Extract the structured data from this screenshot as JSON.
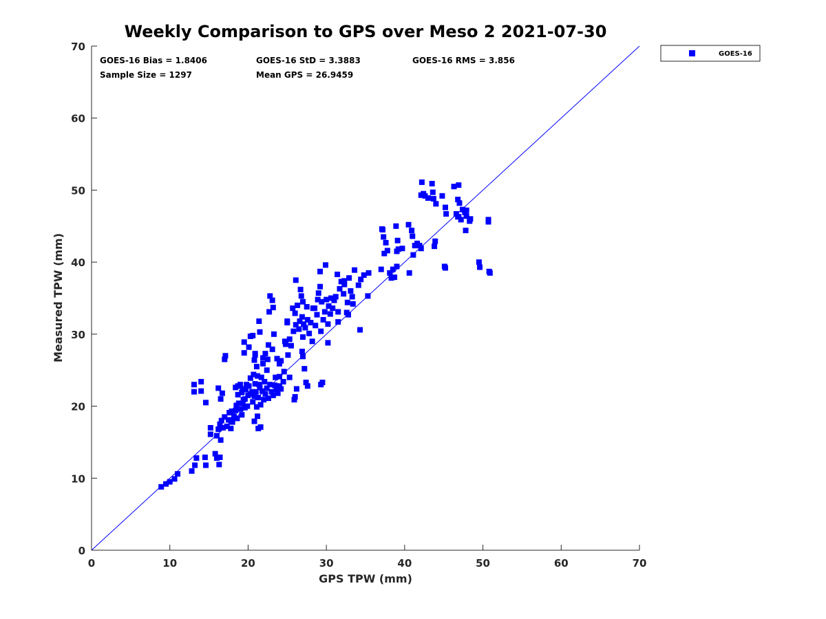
{
  "chart_data": {
    "type": "scatter",
    "title": "Weekly Comparison to GPS over Meso 2 2021-07-30",
    "xlabel": "GPS TPW (mm)",
    "ylabel": "Measured TPW (mm)",
    "xlim": [
      0,
      70
    ],
    "ylim": [
      0,
      70
    ],
    "xticks": [
      "0",
      "10",
      "20",
      "30",
      "40",
      "50",
      "60",
      "70"
    ],
    "yticks": [
      "0",
      "10",
      "20",
      "30",
      "40",
      "50",
      "60",
      "70"
    ],
    "grid": false,
    "legend_position": "outside-top-right",
    "reference_line": {
      "x": [
        0,
        70
      ],
      "y": [
        0,
        70
      ],
      "color": "#0000ff"
    },
    "stats": {
      "bias": "GOES-16 Bias = 1.8406",
      "std": "GOES-16 StD = 3.3883",
      "rms": "GOES-16 RMS = 3.856",
      "sample_size": "Sample Size = 1297",
      "mean_gps": "Mean GPS = 26.9459"
    },
    "series": [
      {
        "name": "GOES-16",
        "color": "#0000ff",
        "marker": "square",
        "points": [
          [
            8.9,
            8.8
          ],
          [
            9.5,
            9.2
          ],
          [
            10.0,
            9.5
          ],
          [
            10.6,
            9.9
          ],
          [
            11.0,
            10.6
          ],
          [
            12.8,
            11.0
          ],
          [
            13.2,
            11.8
          ],
          [
            13.4,
            12.8
          ],
          [
            14.5,
            12.9
          ],
          [
            14.6,
            11.8
          ],
          [
            13.1,
            22.0
          ],
          [
            13.1,
            23.0
          ],
          [
            14.0,
            22.1
          ],
          [
            14.0,
            23.4
          ],
          [
            14.6,
            20.5
          ],
          [
            15.2,
            16.1
          ],
          [
            15.2,
            17.0
          ],
          [
            15.8,
            13.4
          ],
          [
            16.0,
            12.8
          ],
          [
            16.3,
            11.9
          ],
          [
            16.4,
            12.9
          ],
          [
            16.0,
            15.9
          ],
          [
            16.2,
            16.8
          ],
          [
            16.4,
            17.5
          ],
          [
            16.5,
            15.3
          ],
          [
            16.6,
            18.0
          ],
          [
            16.8,
            17.0
          ],
          [
            17.0,
            18.5
          ],
          [
            17.3,
            17.2
          ],
          [
            17.5,
            18.1
          ],
          [
            17.6,
            19.1
          ],
          [
            17.8,
            16.9
          ],
          [
            17.8,
            18.0
          ],
          [
            17.9,
            19.3
          ],
          [
            18.0,
            17.8
          ],
          [
            18.2,
            18.6
          ],
          [
            18.4,
            19.4
          ],
          [
            18.5,
            20.1
          ],
          [
            18.6,
            18.3
          ],
          [
            18.7,
            21.6
          ],
          [
            18.8,
            20.4
          ],
          [
            19.0,
            19.6
          ],
          [
            19.2,
            18.8
          ],
          [
            19.2,
            21.9
          ],
          [
            19.3,
            22.4
          ],
          [
            19.4,
            20.9
          ],
          [
            19.6,
            19.8
          ],
          [
            19.7,
            22.3
          ],
          [
            19.8,
            23.0
          ],
          [
            20.0,
            21.5
          ],
          [
            20.1,
            22.8
          ],
          [
            20.3,
            21.7
          ],
          [
            20.3,
            23.9
          ],
          [
            20.5,
            22.0
          ],
          [
            20.6,
            20.6
          ],
          [
            20.7,
            24.4
          ],
          [
            20.8,
            21.4
          ],
          [
            20.9,
            23.1
          ],
          [
            21.0,
            22.0
          ],
          [
            21.1,
            19.9
          ],
          [
            21.2,
            24.2
          ],
          [
            21.3,
            21.2
          ],
          [
            21.4,
            23.0
          ],
          [
            21.5,
            22.6
          ],
          [
            21.6,
            20.2
          ],
          [
            21.7,
            24.0
          ],
          [
            21.8,
            22.1
          ],
          [
            22.0,
            20.9
          ],
          [
            22.1,
            23.4
          ],
          [
            22.2,
            21.7
          ],
          [
            22.4,
            22.5
          ],
          [
            22.6,
            21.1
          ],
          [
            22.8,
            23.0
          ],
          [
            23.0,
            22.0
          ],
          [
            23.2,
            21.5
          ],
          [
            23.4,
            22.9
          ],
          [
            23.6,
            22.3
          ],
          [
            23.8,
            21.8
          ],
          [
            24.0,
            24.1
          ],
          [
            24.2,
            22.4
          ],
          [
            18.4,
            22.6
          ],
          [
            18.7,
            22.8
          ],
          [
            19.0,
            23.0
          ],
          [
            19.3,
            20.4
          ],
          [
            19.6,
            21.0
          ],
          [
            19.9,
            20.0
          ],
          [
            19.5,
            27.4
          ],
          [
            19.5,
            28.9
          ],
          [
            20.1,
            28.2
          ],
          [
            20.3,
            29.7
          ],
          [
            20.6,
            29.8
          ],
          [
            20.8,
            26.4
          ],
          [
            20.9,
            27.1
          ],
          [
            21.1,
            25.5
          ],
          [
            21.4,
            31.8
          ],
          [
            21.5,
            30.3
          ],
          [
            21.9,
            26.7
          ],
          [
            22.4,
            25.0
          ],
          [
            22.5,
            26.5
          ],
          [
            22.6,
            28.5
          ],
          [
            22.7,
            33.1
          ],
          [
            22.8,
            35.3
          ],
          [
            23.1,
            34.7
          ],
          [
            23.2,
            33.7
          ],
          [
            23.1,
            27.9
          ],
          [
            23.5,
            24.0
          ],
          [
            23.7,
            26.6
          ],
          [
            24.0,
            25.9
          ],
          [
            24.2,
            26.3
          ],
          [
            24.6,
            24.8
          ],
          [
            24.8,
            28.6
          ],
          [
            25.0,
            31.6
          ],
          [
            25.0,
            31.8
          ],
          [
            25.3,
            29.3
          ],
          [
            25.5,
            28.4
          ],
          [
            25.7,
            33.6
          ],
          [
            25.8,
            30.4
          ],
          [
            26.0,
            32.9
          ],
          [
            26.1,
            31.3
          ],
          [
            26.1,
            37.5
          ],
          [
            26.3,
            34.0
          ],
          [
            26.5,
            30.7
          ],
          [
            26.6,
            31.8
          ],
          [
            26.7,
            36.2
          ],
          [
            26.9,
            32.4
          ],
          [
            27.0,
            29.6
          ],
          [
            27.1,
            31.4
          ],
          [
            27.3,
            30.9
          ],
          [
            27.5,
            33.8
          ],
          [
            27.6,
            32.0
          ],
          [
            27.8,
            30.1
          ],
          [
            28.0,
            31.6
          ],
          [
            28.2,
            29.0
          ],
          [
            28.3,
            33.6
          ],
          [
            28.6,
            31.2
          ],
          [
            28.8,
            32.7
          ],
          [
            29.0,
            35.7
          ],
          [
            29.2,
            36.6
          ],
          [
            29.4,
            34.5
          ],
          [
            29.6,
            32.0
          ],
          [
            29.8,
            33.1
          ],
          [
            30.0,
            34.8
          ],
          [
            30.2,
            31.4
          ],
          [
            30.3,
            33.9
          ],
          [
            30.5,
            32.8
          ],
          [
            30.6,
            35.0
          ],
          [
            30.8,
            33.6
          ],
          [
            31.0,
            34.7
          ],
          [
            31.2,
            35.2
          ],
          [
            31.5,
            33.1
          ],
          [
            31.5,
            31.7
          ],
          [
            31.7,
            36.3
          ],
          [
            31.9,
            37.3
          ],
          [
            32.2,
            35.6
          ],
          [
            32.3,
            36.9
          ],
          [
            32.6,
            33.0
          ],
          [
            32.7,
            34.4
          ],
          [
            32.9,
            37.8
          ],
          [
            33.1,
            36.0
          ],
          [
            33.3,
            35.2
          ],
          [
            29.2,
            38.7
          ],
          [
            29.9,
            39.6
          ],
          [
            31.4,
            38.3
          ],
          [
            32.3,
            37.4
          ],
          [
            33.6,
            38.9
          ],
          [
            34.1,
            36.8
          ],
          [
            34.4,
            37.6
          ],
          [
            34.8,
            38.2
          ],
          [
            35.3,
            35.3
          ],
          [
            35.4,
            38.5
          ],
          [
            34.3,
            30.6
          ],
          [
            30.2,
            28.8
          ],
          [
            29.3,
            30.4
          ],
          [
            27.0,
            26.9
          ],
          [
            26.9,
            27.6
          ],
          [
            27.2,
            25.2
          ],
          [
            27.4,
            23.3
          ],
          [
            26.2,
            22.4
          ],
          [
            26.0,
            21.3
          ],
          [
            25.3,
            24.0
          ],
          [
            29.3,
            23.0
          ],
          [
            29.5,
            23.3
          ],
          [
            27.6,
            22.8
          ],
          [
            25.9,
            20.9
          ],
          [
            21.6,
            17.1
          ],
          [
            21.3,
            16.9
          ],
          [
            20.8,
            17.9
          ],
          [
            21.2,
            18.6
          ],
          [
            17.0,
            26.5
          ],
          [
            17.1,
            27.0
          ],
          [
            16.5,
            21.0
          ],
          [
            16.2,
            22.5
          ],
          [
            16.7,
            21.8
          ],
          [
            24.0,
            22.8
          ],
          [
            24.5,
            23.4
          ],
          [
            37.0,
            39.0
          ],
          [
            38.1,
            38.5
          ],
          [
            38.5,
            39.0
          ],
          [
            38.7,
            37.9
          ],
          [
            39.0,
            39.4
          ],
          [
            38.3,
            37.8
          ],
          [
            37.1,
            44.6
          ],
          [
            37.2,
            44.5
          ],
          [
            37.3,
            43.5
          ],
          [
            37.6,
            42.7
          ],
          [
            37.4,
            41.2
          ],
          [
            37.8,
            41.6
          ],
          [
            38.9,
            45.0
          ],
          [
            39.1,
            43.0
          ],
          [
            39.0,
            41.5
          ],
          [
            39.2,
            41.8
          ],
          [
            39.7,
            41.9
          ],
          [
            40.5,
            45.2
          ],
          [
            40.9,
            44.4
          ],
          [
            41.0,
            43.6
          ],
          [
            41.1,
            41.0
          ],
          [
            41.3,
            42.3
          ],
          [
            41.6,
            42.6
          ],
          [
            41.9,
            42.3
          ],
          [
            42.1,
            41.9
          ],
          [
            40.6,
            38.5
          ],
          [
            42.6,
            49.2
          ],
          [
            42.1,
            49.3
          ],
          [
            42.2,
            51.1
          ],
          [
            42.4,
            49.5
          ],
          [
            43.0,
            48.9
          ],
          [
            43.5,
            50.9
          ],
          [
            43.6,
            49.7
          ],
          [
            43.7,
            48.8
          ],
          [
            44.0,
            48.1
          ],
          [
            43.9,
            42.9
          ],
          [
            43.8,
            42.2
          ],
          [
            44.8,
            49.2
          ],
          [
            45.2,
            47.6
          ],
          [
            45.3,
            46.7
          ],
          [
            46.3,
            50.5
          ],
          [
            46.9,
            50.7
          ],
          [
            46.8,
            48.7
          ],
          [
            47.0,
            48.2
          ],
          [
            47.4,
            47.3
          ],
          [
            47.7,
            46.9
          ],
          [
            47.9,
            46.4
          ],
          [
            47.2,
            45.9
          ],
          [
            46.9,
            46.3
          ],
          [
            48.3,
            45.7
          ],
          [
            48.4,
            46.0
          ],
          [
            47.8,
            44.4
          ],
          [
            45.2,
            39.2
          ],
          [
            45.1,
            39.4
          ],
          [
            49.5,
            40.0
          ],
          [
            49.6,
            39.3
          ],
          [
            50.9,
            38.5
          ],
          [
            50.8,
            38.7
          ],
          [
            50.7,
            45.6
          ],
          [
            50.7,
            45.9
          ],
          [
            46.8,
            46.3
          ],
          [
            46.6,
            46.7
          ],
          [
            47.9,
            47.2
          ],
          [
            33.4,
            34.2
          ],
          [
            32.8,
            32.7
          ],
          [
            28.9,
            34.8
          ],
          [
            28.5,
            33.6
          ],
          [
            27.0,
            34.5
          ],
          [
            26.8,
            35.3
          ],
          [
            25.1,
            27.1
          ],
          [
            24.7,
            29.0
          ],
          [
            23.3,
            30.0
          ],
          [
            22.2,
            27.3
          ],
          [
            21.9,
            25.9
          ],
          [
            20.9,
            27.3
          ]
        ]
      }
    ]
  }
}
